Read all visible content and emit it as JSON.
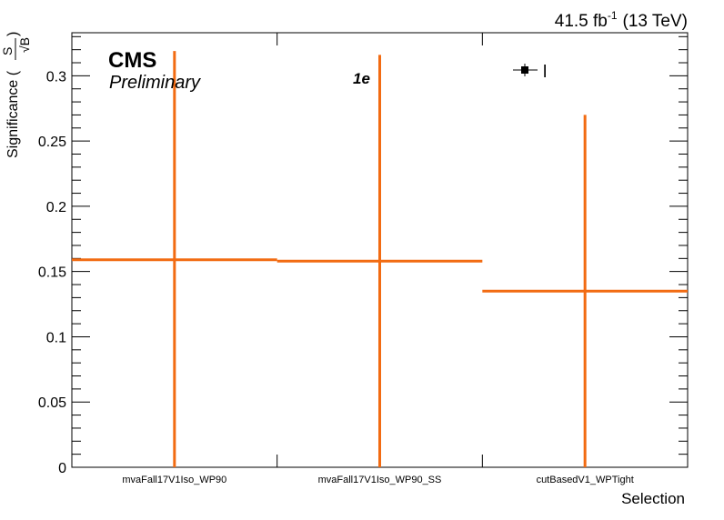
{
  "header": {
    "lumi": "41.5 fb",
    "lumi_sup": "-1",
    "energy": "(13 TeV)"
  },
  "labels": {
    "experiment": "CMS",
    "status": "Preliminary",
    "channel": "1e"
  },
  "legend": {
    "entry": "l",
    "position": "top-right"
  },
  "colors": {
    "series": "#f26b12",
    "axis": "#000000"
  },
  "chart_data": {
    "type": "bar",
    "categories": [
      "mvaFall17V1Iso_WP90",
      "mvaFall17V1Iso_WP90_SS",
      "cutBasedV1_WPTight"
    ],
    "series": [
      {
        "name": "l",
        "values": [
          0.159,
          0.158,
          0.135
        ],
        "error_up": [
          0.16,
          0.158,
          0.135
        ],
        "error_down": [
          0.159,
          0.158,
          0.135
        ]
      }
    ],
    "xlabel": "Selection",
    "ylabel": "Significance (S/√B)",
    "ylabel_text": "Significance (",
    "ylabel_num": "S",
    "ylabel_den": "B",
    "ylabel_close": ")",
    "ylim": [
      0,
      0.333
    ],
    "yticks": [
      "0",
      "0.05",
      "0.1",
      "0.15",
      "0.2",
      "0.25",
      "0.3"
    ],
    "grid": false
  }
}
